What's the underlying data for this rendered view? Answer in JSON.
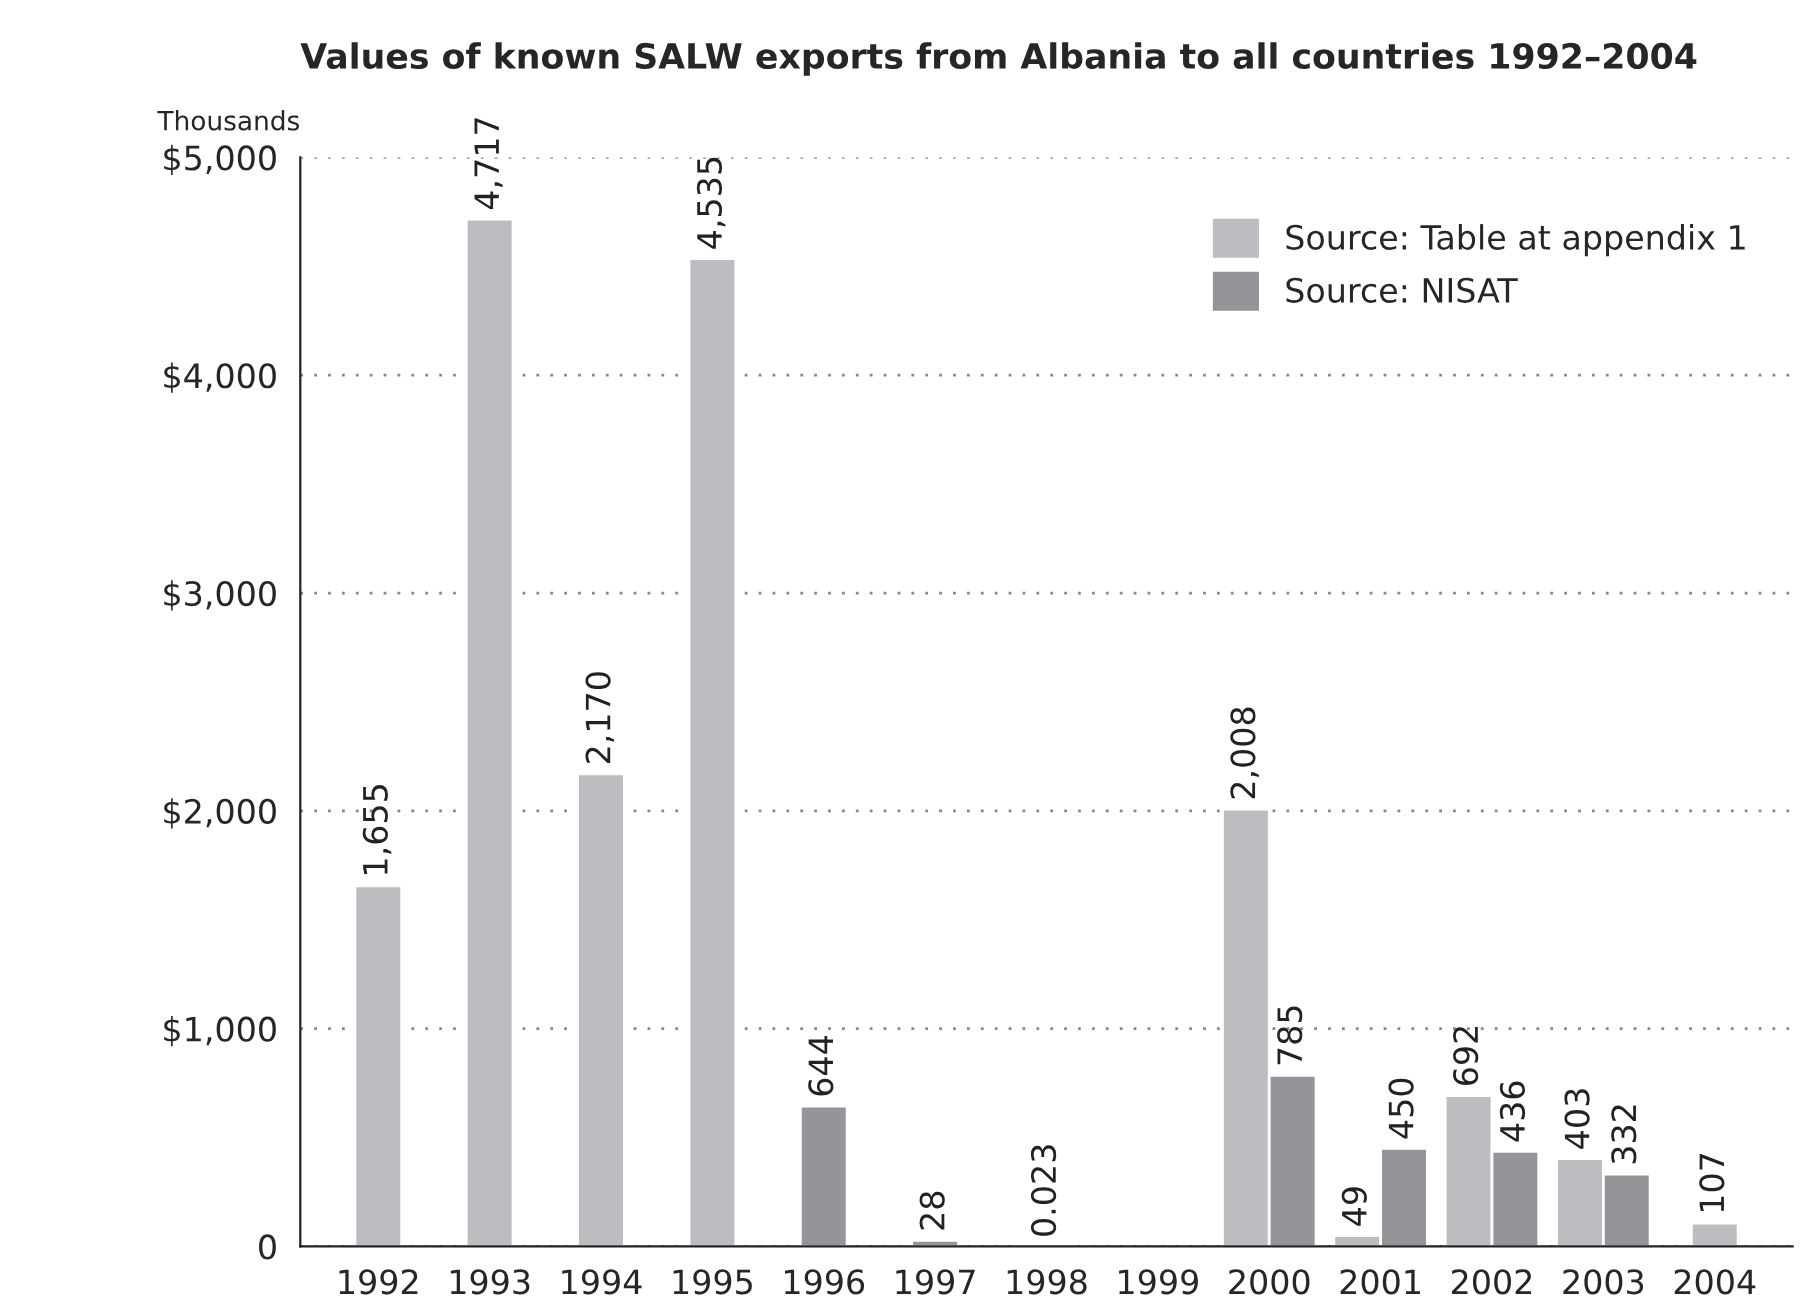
{
  "chart_data": {
    "type": "bar",
    "title": "Values of known SALW exports from Albania to all countries 1992–2004",
    "ylabel": "Thousands",
    "categories": [
      "1992",
      "1993",
      "1994",
      "1995",
      "1996",
      "1997",
      "1998",
      "1999",
      "2000",
      "2001",
      "2002",
      "2003",
      "2004"
    ],
    "series": [
      {
        "name": "Source: Table at appendix 1",
        "color": "#bcbdc1",
        "values": [
          1655,
          4717,
          2170,
          4535,
          null,
          null,
          null,
          null,
          2008,
          49,
          692,
          403,
          107
        ],
        "value_labels": [
          "1,655",
          "4,717",
          "2,170",
          "4,535",
          null,
          null,
          null,
          null,
          "2,008",
          "49",
          "692",
          "403",
          "107"
        ]
      },
      {
        "name": "Source: NISAT",
        "color": "#939598",
        "values": [
          null,
          null,
          null,
          null,
          644,
          28,
          0.023,
          null,
          785,
          450,
          436,
          332,
          null
        ],
        "value_labels": [
          null,
          null,
          null,
          null,
          "644",
          "28",
          "0.023",
          null,
          "785",
          "450",
          "436",
          "332",
          null
        ]
      }
    ],
    "ylim": [
      0,
      5000
    ],
    "yticks": [
      {
        "value": 0,
        "label": "0"
      },
      {
        "value": 1000,
        "label": "$1,000"
      },
      {
        "value": 2000,
        "label": "$2,000"
      },
      {
        "value": 3000,
        "label": "$3,000"
      },
      {
        "value": 4000,
        "label": "$4,000"
      },
      {
        "value": 5000,
        "label": "$5,000"
      }
    ],
    "grid": "y",
    "legend": "top right"
  }
}
